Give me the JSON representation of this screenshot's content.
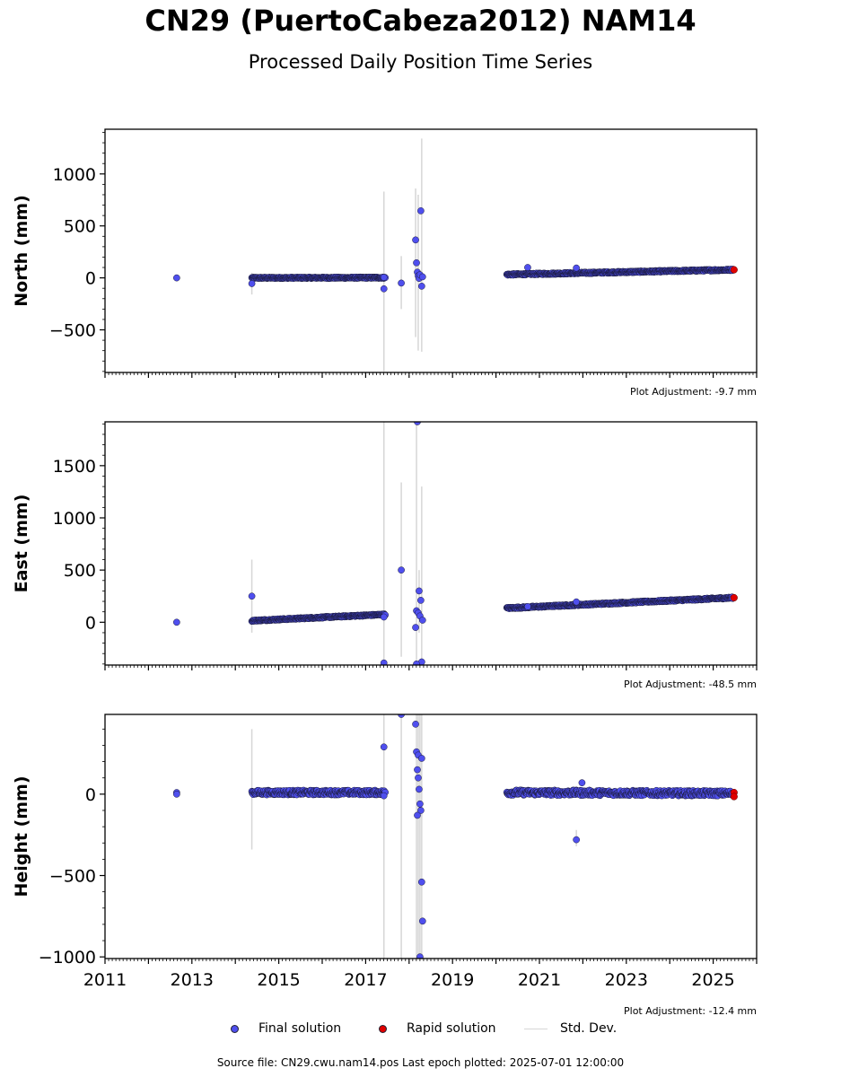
{
  "title": "CN29 (PuertoCabeza2012) NAM14",
  "subtitle": "Processed Daily Position Time Series",
  "legend": {
    "final": "Final solution",
    "rapid": "Rapid solution",
    "std": "Std. Dev."
  },
  "footer": "Source file: CN29.cwu.nam14.pos  Last epoch plotted: 2025-07-01 12:00:00",
  "colors": {
    "final": "#4f4fee",
    "rapid": "#e00000",
    "std": "#d6d6d6",
    "edge": "#1a1a3a"
  },
  "chart_data": [
    {
      "type": "scatter",
      "panel": "north",
      "ylabel": "North (mm)",
      "xlim": [
        2011.0,
        2026.0
      ],
      "ylim": [
        -910,
        1430
      ],
      "yticks": [
        -500,
        0,
        500,
        1000
      ],
      "adjustment": "Plot Adjustment: -9.7 mm",
      "segments": [
        {
          "x0": 2014.38,
          "x1": 2017.45,
          "y0": 0,
          "y1": 2,
          "scatter": 6
        },
        {
          "x0": 2020.25,
          "x1": 2025.45,
          "y0": 32,
          "y1": 78,
          "scatter": 7
        }
      ],
      "points": [
        {
          "x": 2012.65,
          "y": 0
        },
        {
          "x": 2014.38,
          "y": -55
        },
        {
          "x": 2017.42,
          "y": -105
        },
        {
          "x": 2017.42,
          "y": 5
        },
        {
          "x": 2017.82,
          "y": -50
        },
        {
          "x": 2018.15,
          "y": 365
        },
        {
          "x": 2018.17,
          "y": 145
        },
        {
          "x": 2018.19,
          "y": 55
        },
        {
          "x": 2018.21,
          "y": 20
        },
        {
          "x": 2018.23,
          "y": -5
        },
        {
          "x": 2018.25,
          "y": 30
        },
        {
          "x": 2018.27,
          "y": 645
        },
        {
          "x": 2018.29,
          "y": -80
        },
        {
          "x": 2018.31,
          "y": 10
        },
        {
          "x": 2020.73,
          "y": 100
        },
        {
          "x": 2021.85,
          "y": 95
        }
      ],
      "errorbars": [
        {
          "x": 2017.42,
          "lo": -900,
          "hi": 830
        },
        {
          "x": 2017.82,
          "lo": -300,
          "hi": 210
        },
        {
          "x": 2018.15,
          "lo": -570,
          "hi": 860
        },
        {
          "x": 2018.21,
          "lo": -700,
          "hi": 800
        },
        {
          "x": 2018.29,
          "lo": -710,
          "hi": 1340
        },
        {
          "x": 2014.38,
          "lo": -160,
          "hi": 50
        }
      ],
      "rapid": [
        {
          "x": 2025.48,
          "y": 78
        }
      ]
    },
    {
      "type": "scatter",
      "panel": "east",
      "ylabel": "East (mm)",
      "xlim": [
        2011.0,
        2026.0
      ],
      "ylim": [
        -410,
        1920
      ],
      "yticks": [
        0,
        500,
        1000,
        1500
      ],
      "adjustment": "Plot Adjustment: -48.5 mm",
      "segments": [
        {
          "x0": 2014.38,
          "x1": 2017.45,
          "y0": 15,
          "y1": 75,
          "scatter": 6
        },
        {
          "x0": 2020.25,
          "x1": 2025.45,
          "y0": 135,
          "y1": 235,
          "scatter": 7
        }
      ],
      "points": [
        {
          "x": 2012.65,
          "y": 0
        },
        {
          "x": 2014.38,
          "y": 250
        },
        {
          "x": 2017.42,
          "y": 50
        },
        {
          "x": 2017.42,
          "y": -390
        },
        {
          "x": 2017.82,
          "y": 500
        },
        {
          "x": 2018.15,
          "y": -50
        },
        {
          "x": 2018.17,
          "y": 110
        },
        {
          "x": 2018.19,
          "y": 1920
        },
        {
          "x": 2018.21,
          "y": 90
        },
        {
          "x": 2018.23,
          "y": 300
        },
        {
          "x": 2018.25,
          "y": 60
        },
        {
          "x": 2018.27,
          "y": 210
        },
        {
          "x": 2018.29,
          "y": -380
        },
        {
          "x": 2018.31,
          "y": 20
        },
        {
          "x": 2018.17,
          "y": -400
        },
        {
          "x": 2020.73,
          "y": 150
        },
        {
          "x": 2021.85,
          "y": 195
        }
      ],
      "errorbars": [
        {
          "x": 2014.38,
          "lo": -100,
          "hi": 600
        },
        {
          "x": 2017.42,
          "lo": -410,
          "hi": 1920
        },
        {
          "x": 2017.82,
          "lo": -330,
          "hi": 1340
        },
        {
          "x": 2018.17,
          "lo": -410,
          "hi": 1920
        },
        {
          "x": 2018.29,
          "lo": -350,
          "hi": 1300
        },
        {
          "x": 2018.23,
          "lo": -100,
          "hi": 500
        }
      ],
      "rapid": [
        {
          "x": 2025.48,
          "y": 235
        }
      ]
    },
    {
      "type": "scatter",
      "panel": "height",
      "ylabel": "Height (mm)",
      "xlim": [
        2011.0,
        2026.0
      ],
      "ylim": [
        -1010,
        490
      ],
      "yticks": [
        -1000,
        -500,
        0
      ],
      "xticks": [
        2011,
        2013,
        2015,
        2017,
        2019,
        2021,
        2023,
        2025
      ],
      "adjustment": "Plot Adjustment: -12.4 mm",
      "segments": [
        {
          "x0": 2014.38,
          "x1": 2017.45,
          "y0": 10,
          "y1": 10,
          "scatter": 14
        },
        {
          "x0": 2020.25,
          "x1": 2025.45,
          "y0": 10,
          "y1": 5,
          "scatter": 16
        }
      ],
      "points": [
        {
          "x": 2012.65,
          "y": 10
        },
        {
          "x": 2012.65,
          "y": 0
        },
        {
          "x": 2017.42,
          "y": 290
        },
        {
          "x": 2017.42,
          "y": -10
        },
        {
          "x": 2017.82,
          "y": 490
        },
        {
          "x": 2018.15,
          "y": 430
        },
        {
          "x": 2018.17,
          "y": 260
        },
        {
          "x": 2018.19,
          "y": 150
        },
        {
          "x": 2018.21,
          "y": 100
        },
        {
          "x": 2018.23,
          "y": 30
        },
        {
          "x": 2018.25,
          "y": -60
        },
        {
          "x": 2018.27,
          "y": -100
        },
        {
          "x": 2018.29,
          "y": -540
        },
        {
          "x": 2018.31,
          "y": -780
        },
        {
          "x": 2018.25,
          "y": -1000
        },
        {
          "x": 2018.19,
          "y": -130
        },
        {
          "x": 2018.21,
          "y": 240
        },
        {
          "x": 2018.29,
          "y": 220
        },
        {
          "x": 2021.85,
          "y": -280
        },
        {
          "x": 2021.98,
          "y": 70
        }
      ],
      "errorbars": [
        {
          "x": 2014.38,
          "lo": -340,
          "hi": 400
        },
        {
          "x": 2017.42,
          "lo": -1010,
          "hi": 490
        },
        {
          "x": 2017.82,
          "lo": -1010,
          "hi": 490
        },
        {
          "x": 2018.17,
          "lo": -1010,
          "hi": 490
        },
        {
          "x": 2018.21,
          "lo": -1010,
          "hi": 490
        },
        {
          "x": 2018.25,
          "lo": -1010,
          "hi": 490
        },
        {
          "x": 2018.29,
          "lo": -1010,
          "hi": 490
        },
        {
          "x": 2021.85,
          "lo": -320,
          "hi": -220
        }
      ],
      "rapid": [
        {
          "x": 2025.48,
          "y": 10
        },
        {
          "x": 2025.48,
          "y": -15
        }
      ]
    }
  ]
}
